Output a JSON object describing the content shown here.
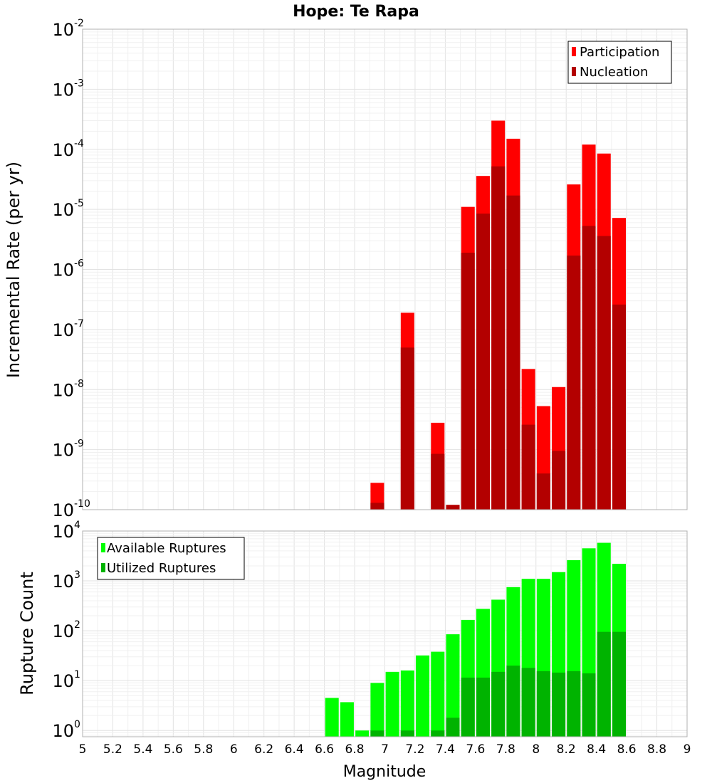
{
  "chart_data": [
    {
      "type": "bar",
      "title": "Hope: Te Rapa",
      "xlabel": "",
      "ylabel": "Incremental Rate (per yr)",
      "yscale": "log",
      "ylim": [
        1e-10,
        0.01
      ],
      "ytick_labels": [
        {
          "base": "10",
          "exp": "-10"
        },
        {
          "base": "10",
          "exp": "-9"
        },
        {
          "base": "10",
          "exp": "-8"
        },
        {
          "base": "10",
          "exp": "-7"
        },
        {
          "base": "10",
          "exp": "-6"
        },
        {
          "base": "10",
          "exp": "-5"
        },
        {
          "base": "10",
          "exp": "-4"
        },
        {
          "base": "10",
          "exp": "-3"
        },
        {
          "base": "10",
          "exp": "-2"
        }
      ],
      "xlim": [
        5,
        9
      ],
      "grid": true,
      "legend": "top-right",
      "x": [
        6.95,
        7.15,
        7.35,
        7.45,
        7.55,
        7.65,
        7.75,
        7.85,
        7.95,
        8.05,
        8.15,
        8.25,
        8.35,
        8.45,
        8.55
      ],
      "series": [
        {
          "name": "Participation",
          "color": "#ff0000",
          "values": [
            2.8e-10,
            1.9e-07,
            2.8e-09,
            1.2e-10,
            1.1e-05,
            3.6e-05,
            0.0003,
            0.00015,
            2.2e-08,
            5.3e-09,
            1.1e-08,
            2.6e-05,
            0.00012,
            8.5e-05,
            7.2e-06
          ]
        },
        {
          "name": "Nucleation",
          "color": "#b30000",
          "values": [
            1.3e-10,
            5e-08,
            8.5e-10,
            1.2e-10,
            1.9e-06,
            8.5e-06,
            5.2e-05,
            1.7e-05,
            2.6e-09,
            4e-10,
            9.5e-10,
            1.7e-06,
            5.3e-06,
            3.6e-06,
            2.6e-07
          ]
        }
      ]
    },
    {
      "type": "bar",
      "title": "",
      "xlabel": "Magnitude",
      "ylabel": "Rupture Count",
      "yscale": "log",
      "ylim": [
        0.75,
        10000
      ],
      "ytick_labels": [
        {
          "base": "10",
          "exp": "0"
        },
        {
          "base": "10",
          "exp": "1"
        },
        {
          "base": "10",
          "exp": "2"
        },
        {
          "base": "10",
          "exp": "3"
        },
        {
          "base": "10",
          "exp": "4"
        }
      ],
      "xlim": [
        5,
        9
      ],
      "xticks": [
        "5",
        "5.2",
        "5.4",
        "5.6",
        "5.8",
        "6",
        "6.2",
        "6.4",
        "6.6",
        "6.8",
        "7",
        "7.2",
        "7.4",
        "7.6",
        "7.8",
        "8",
        "8.2",
        "8.4",
        "8.6",
        "8.8",
        "9"
      ],
      "grid": true,
      "legend": "top-left",
      "x": [
        6.65,
        6.75,
        6.85,
        6.95,
        7.05,
        7.15,
        7.25,
        7.35,
        7.45,
        7.55,
        7.65,
        7.75,
        7.85,
        7.95,
        8.05,
        8.15,
        8.25,
        8.35,
        8.45,
        8.55
      ],
      "series": [
        {
          "name": "Available Ruptures",
          "color": "#00ff00",
          "values": [
            4.5,
            3.7,
            1,
            9,
            15,
            16,
            32,
            38,
            85,
            165,
            275,
            420,
            750,
            1100,
            1100,
            1500,
            2600,
            4500,
            5800,
            2200
          ]
        },
        {
          "name": "Utilized Ruptures",
          "color": "#00b300",
          "values": [
            0,
            0,
            0,
            1,
            0,
            1,
            0,
            1,
            1.8,
            11.5,
            11.5,
            15,
            20,
            18,
            15.5,
            14.5,
            15.5,
            14,
            95,
            95
          ]
        }
      ]
    }
  ]
}
